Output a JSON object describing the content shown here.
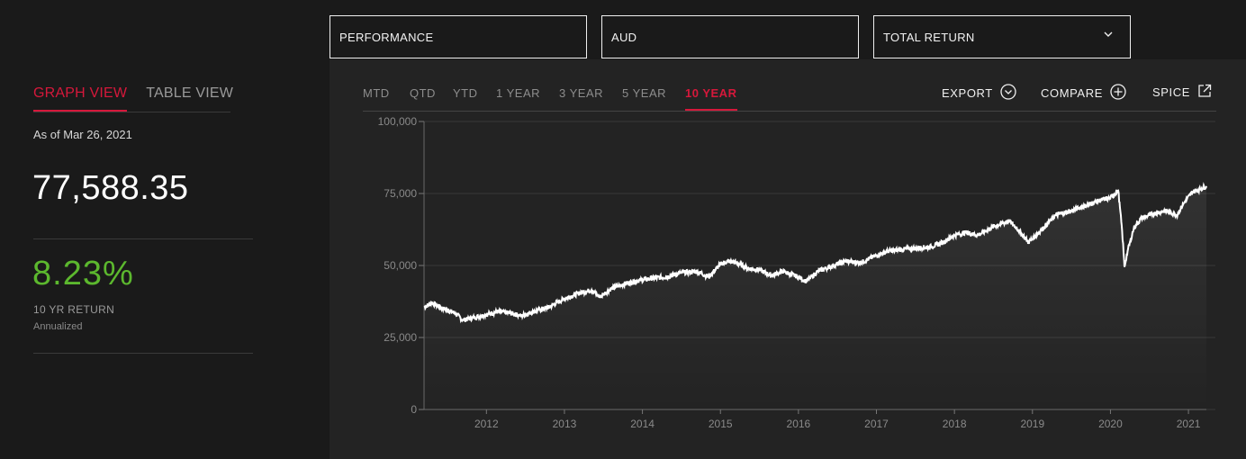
{
  "filters": {
    "metric": "PERFORMANCE",
    "currency": "AUD",
    "return_type": "TOTAL RETURN"
  },
  "view_tabs": [
    {
      "label": "GRAPH VIEW",
      "active": true
    },
    {
      "label": "TABLE VIEW",
      "active": false
    }
  ],
  "summary": {
    "as_of": "As of Mar 26, 2021",
    "value": "77,588.35",
    "return_pct": "8.23%",
    "return_label": "10 YR RETURN",
    "return_note": "Annualized"
  },
  "time_ranges": [
    {
      "label": "MTD",
      "active": false
    },
    {
      "label": "QTD",
      "active": false
    },
    {
      "label": "YTD",
      "active": false
    },
    {
      "label": "1 YEAR",
      "active": false
    },
    {
      "label": "3 YEAR",
      "active": false
    },
    {
      "label": "5 YEAR",
      "active": false
    },
    {
      "label": "10 YEAR",
      "active": true
    }
  ],
  "actions": [
    {
      "label": "EXPORT",
      "icon": "chevron-down-circle-icon"
    },
    {
      "label": "COMPARE",
      "icon": "plus-circle-icon"
    },
    {
      "label": "SPICE",
      "icon": "external-link-icon"
    }
  ],
  "colors": {
    "accent": "#d6183b",
    "positive": "#5cb82e",
    "line": "#ffffff"
  },
  "chart_data": {
    "type": "line",
    "title": "",
    "xlabel": "",
    "ylabel": "",
    "xlim": [
      2011.2,
      2021.23
    ],
    "ylim": [
      0,
      100000
    ],
    "y_ticks": [
      0,
      25000,
      50000,
      75000,
      100000
    ],
    "y_tick_labels": [
      "0",
      "25,000",
      "50,000",
      "75,000",
      "100,000"
    ],
    "x_ticks": [
      2012,
      2013,
      2014,
      2015,
      2016,
      2017,
      2018,
      2019,
      2020,
      2021
    ],
    "x_tick_labels": [
      "2012",
      "2013",
      "2014",
      "2015",
      "2016",
      "2017",
      "2018",
      "2019",
      "2020",
      "2021"
    ],
    "grid": true,
    "series": [
      {
        "x": [
          2011.2,
          2011.3,
          2011.45,
          2011.6,
          2011.7,
          2011.85,
          2012.0,
          2012.15,
          2012.3,
          2012.45,
          2012.6,
          2012.8,
          2013.0,
          2013.2,
          2013.35,
          2013.45,
          2013.6,
          2013.75,
          2013.9,
          2014.1,
          2014.3,
          2014.5,
          2014.7,
          2014.85,
          2015.0,
          2015.1,
          2015.2,
          2015.35,
          2015.5,
          2015.65,
          2015.8,
          2016.0,
          2016.1,
          2016.25,
          2016.45,
          2016.6,
          2016.8,
          2017.0,
          2017.15,
          2017.3,
          2017.5,
          2017.7,
          2017.85,
          2018.0,
          2018.15,
          2018.3,
          2018.5,
          2018.7,
          2018.8,
          2018.95,
          2019.1,
          2019.3,
          2019.5,
          2019.7,
          2019.85,
          2020.0,
          2020.1,
          2020.15,
          2020.18,
          2020.22,
          2020.3,
          2020.4,
          2020.55,
          2020.7,
          2020.85,
          2020.95,
          2021.05,
          2021.15,
          2021.23
        ],
        "y": [
          35500,
          37000,
          35000,
          33500,
          31000,
          32000,
          33000,
          34000,
          33500,
          32500,
          34000,
          35500,
          38500,
          40500,
          41500,
          39000,
          42000,
          43500,
          44500,
          45500,
          46000,
          47500,
          48000,
          46000,
          50500,
          51500,
          51000,
          49000,
          48500,
          46500,
          48000,
          46000,
          44500,
          48000,
          50000,
          51500,
          51000,
          53500,
          55000,
          55500,
          56000,
          56500,
          58000,
          60500,
          61500,
          60500,
          63500,
          65500,
          63000,
          58000,
          62000,
          67500,
          69000,
          71000,
          72500,
          73500,
          76000,
          62000,
          49500,
          55000,
          63000,
          66500,
          68000,
          69000,
          67500,
          72000,
          75500,
          76500,
          77588
        ]
      }
    ]
  }
}
